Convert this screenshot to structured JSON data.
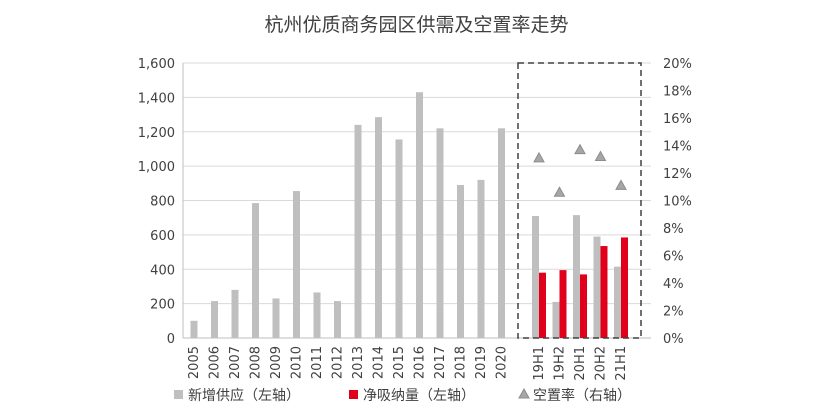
{
  "chart_data": {
    "type": "bar",
    "title": "杭州优质商务园区供需及空置率走势",
    "categories": [
      "2005",
      "2006",
      "2007",
      "2008",
      "2009",
      "2010",
      "2011",
      "2012",
      "2013",
      "2014",
      "2015",
      "2016",
      "2017",
      "2018",
      "2019",
      "2020",
      "19H1",
      "19H2",
      "20H1",
      "20H2",
      "21H1"
    ],
    "series": [
      {
        "name": "新增供应（左轴）",
        "kind": "bar",
        "axis": "left",
        "color": "#bfbfbf",
        "values": [
          100,
          215,
          280,
          785,
          230,
          855,
          265,
          215,
          1240,
          1285,
          1155,
          1430,
          1220,
          890,
          920,
          1220,
          710,
          210,
          715,
          590,
          415
        ]
      },
      {
        "name": "净吸纳量（左轴）",
        "kind": "bar",
        "axis": "left",
        "color": "#e0001b",
        "values": [
          null,
          null,
          null,
          null,
          null,
          null,
          null,
          null,
          null,
          null,
          null,
          null,
          null,
          null,
          null,
          null,
          380,
          395,
          370,
          535,
          585
        ]
      },
      {
        "name": "空置率（右轴）",
        "kind": "scatter",
        "axis": "right",
        "color": "#a6a6a6",
        "values": [
          null,
          null,
          null,
          null,
          null,
          null,
          null,
          null,
          null,
          null,
          null,
          null,
          null,
          null,
          null,
          null,
          13.1,
          10.6,
          13.7,
          13.2,
          11.1
        ]
      }
    ],
    "y_left": {
      "min": 0,
      "max": 1600,
      "ticks": [
        "0",
        "200",
        "400",
        "600",
        "800",
        "1,000",
        "1,200",
        "1,400",
        "1,600"
      ]
    },
    "y_right": {
      "min": 0,
      "max": 20,
      "ticks": [
        "0%",
        "2%",
        "4%",
        "6%",
        "8%",
        "10%",
        "12%",
        "14%",
        "16%",
        "18%",
        "20%"
      ]
    },
    "grid": true,
    "highlight_box": "19H1-21H1",
    "legend": [
      {
        "label": "新增供应（左轴）",
        "marker": "square",
        "color": "#bfbfbf"
      },
      {
        "label": "净吸纳量（左轴）",
        "marker": "square",
        "color": "#e0001b"
      },
      {
        "label": "空置率（右轴）",
        "marker": "triangle",
        "color": "#a6a6a6"
      }
    ]
  }
}
